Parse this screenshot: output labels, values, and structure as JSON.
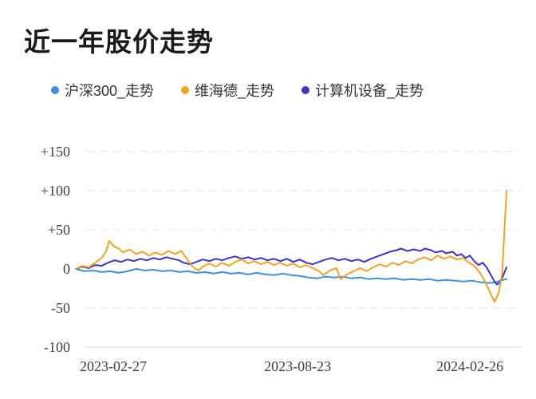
{
  "title": {
    "text": "近一年股价走势"
  },
  "legend": [
    {
      "label": "沪深300_走势",
      "color": "#3f8fdd"
    },
    {
      "label": "维海德_走势",
      "color": "#f3a224"
    },
    {
      "label": "计算机设备_走势",
      "color": "#3d31d0"
    }
  ],
  "colors": {
    "grid_dashed": "#e6e6e6",
    "axis_line": "#d8d8d8",
    "axis_text": "#3f3f3f",
    "title_text": "#1a1a1a",
    "legend_text": "#333333",
    "background": "#ffffff"
  },
  "chart_data": {
    "type": "line",
    "title": "近一年股价走势",
    "xlabel": "",
    "ylabel": "",
    "x_axis": {
      "type": "time",
      "start": "2023-02-27",
      "end": "2024-02-26",
      "tick_labels": [
        "2023-02-27",
        "2023-08-23",
        "2024-02-26"
      ]
    },
    "y_axis": {
      "ticks": [
        150,
        100,
        50,
        0,
        -50,
        -100
      ],
      "tick_labels": [
        "+150",
        "+100",
        "+50",
        "0",
        "-50",
        "-100"
      ],
      "ylim": [
        -100,
        150
      ],
      "unit": "percent_change"
    },
    "grid": {
      "dashed_at": [
        150,
        100,
        50,
        -50
      ],
      "solid_at": [
        -100
      ]
    },
    "legend_position": "top-center",
    "series": [
      {
        "name": "沪深300_走势",
        "color": "#3f8fdd",
        "points": [
          [
            0,
            0
          ],
          [
            0.02,
            -3
          ],
          [
            0.04,
            -2
          ],
          [
            0.06,
            -4
          ],
          [
            0.08,
            -3
          ],
          [
            0.1,
            -5
          ],
          [
            0.12,
            -3
          ],
          [
            0.14,
            0
          ],
          [
            0.16,
            -2
          ],
          [
            0.18,
            -1
          ],
          [
            0.2,
            -3
          ],
          [
            0.22,
            -2
          ],
          [
            0.24,
            -4
          ],
          [
            0.26,
            -3
          ],
          [
            0.28,
            -5
          ],
          [
            0.3,
            -4
          ],
          [
            0.32,
            -6
          ],
          [
            0.34,
            -4
          ],
          [
            0.36,
            -6
          ],
          [
            0.38,
            -5
          ],
          [
            0.4,
            -7
          ],
          [
            0.42,
            -5
          ],
          [
            0.44,
            -7
          ],
          [
            0.46,
            -8
          ],
          [
            0.48,
            -6
          ],
          [
            0.5,
            -8
          ],
          [
            0.52,
            -9
          ],
          [
            0.54,
            -11
          ],
          [
            0.56,
            -12
          ],
          [
            0.58,
            -10
          ],
          [
            0.6,
            -11
          ],
          [
            0.62,
            -10
          ],
          [
            0.64,
            -12
          ],
          [
            0.66,
            -11
          ],
          [
            0.68,
            -13
          ],
          [
            0.7,
            -12
          ],
          [
            0.72,
            -13
          ],
          [
            0.74,
            -12
          ],
          [
            0.76,
            -14
          ],
          [
            0.78,
            -13
          ],
          [
            0.8,
            -14
          ],
          [
            0.82,
            -13
          ],
          [
            0.84,
            -15
          ],
          [
            0.86,
            -14
          ],
          [
            0.88,
            -15
          ],
          [
            0.9,
            -16
          ],
          [
            0.92,
            -15
          ],
          [
            0.94,
            -17
          ],
          [
            0.96,
            -18
          ],
          [
            0.975,
            -17
          ],
          [
            0.985,
            -15
          ],
          [
            1,
            -13
          ]
        ]
      },
      {
        "name": "维海德_走势",
        "color": "#f3a224",
        "points": [
          [
            0,
            0
          ],
          [
            0.015,
            4
          ],
          [
            0.03,
            2
          ],
          [
            0.045,
            8
          ],
          [
            0.06,
            14
          ],
          [
            0.07,
            22
          ],
          [
            0.078,
            36
          ],
          [
            0.088,
            29
          ],
          [
            0.1,
            26
          ],
          [
            0.11,
            21
          ],
          [
            0.125,
            25
          ],
          [
            0.14,
            19
          ],
          [
            0.155,
            22
          ],
          [
            0.17,
            17
          ],
          [
            0.185,
            21
          ],
          [
            0.2,
            18
          ],
          [
            0.215,
            23
          ],
          [
            0.23,
            19
          ],
          [
            0.245,
            23
          ],
          [
            0.255,
            15
          ],
          [
            0.265,
            7
          ],
          [
            0.275,
            1
          ],
          [
            0.285,
            -2
          ],
          [
            0.295,
            3
          ],
          [
            0.31,
            7
          ],
          [
            0.325,
            3
          ],
          [
            0.34,
            8
          ],
          [
            0.355,
            4
          ],
          [
            0.37,
            9
          ],
          [
            0.385,
            12
          ],
          [
            0.4,
            7
          ],
          [
            0.415,
            10
          ],
          [
            0.43,
            6
          ],
          [
            0.445,
            9
          ],
          [
            0.46,
            5
          ],
          [
            0.475,
            8
          ],
          [
            0.49,
            4
          ],
          [
            0.505,
            7
          ],
          [
            0.52,
            2
          ],
          [
            0.535,
            5
          ],
          [
            0.55,
            1
          ],
          [
            0.565,
            -3
          ],
          [
            0.575,
            -8
          ],
          [
            0.59,
            -2
          ],
          [
            0.605,
            1
          ],
          [
            0.615,
            -13
          ],
          [
            0.63,
            -7
          ],
          [
            0.645,
            -3
          ],
          [
            0.66,
            1
          ],
          [
            0.675,
            -3
          ],
          [
            0.69,
            2
          ],
          [
            0.705,
            6
          ],
          [
            0.72,
            3
          ],
          [
            0.735,
            8
          ],
          [
            0.75,
            5
          ],
          [
            0.765,
            10
          ],
          [
            0.78,
            7
          ],
          [
            0.795,
            12
          ],
          [
            0.81,
            15
          ],
          [
            0.825,
            11
          ],
          [
            0.84,
            17
          ],
          [
            0.855,
            13
          ],
          [
            0.87,
            16
          ],
          [
            0.885,
            12
          ],
          [
            0.9,
            14
          ],
          [
            0.91,
            9
          ],
          [
            0.925,
            4
          ],
          [
            0.94,
            -6
          ],
          [
            0.95,
            -16
          ],
          [
            0.96,
            -28
          ],
          [
            0.972,
            -42
          ],
          [
            0.982,
            -30
          ],
          [
            0.99,
            -5
          ],
          [
            1,
            100
          ]
        ]
      },
      {
        "name": "计算机设备_走势",
        "color": "#3d31d0",
        "points": [
          [
            0,
            0
          ],
          [
            0.015,
            3
          ],
          [
            0.03,
            1
          ],
          [
            0.045,
            5
          ],
          [
            0.06,
            4
          ],
          [
            0.075,
            8
          ],
          [
            0.09,
            11
          ],
          [
            0.105,
            9
          ],
          [
            0.12,
            12
          ],
          [
            0.135,
            10
          ],
          [
            0.15,
            13
          ],
          [
            0.165,
            11
          ],
          [
            0.18,
            14
          ],
          [
            0.195,
            12
          ],
          [
            0.21,
            15
          ],
          [
            0.225,
            13
          ],
          [
            0.24,
            11
          ],
          [
            0.25,
            8
          ],
          [
            0.265,
            6
          ],
          [
            0.28,
            9
          ],
          [
            0.295,
            12
          ],
          [
            0.31,
            10
          ],
          [
            0.325,
            13
          ],
          [
            0.34,
            11
          ],
          [
            0.355,
            14
          ],
          [
            0.37,
            16
          ],
          [
            0.385,
            13
          ],
          [
            0.4,
            15
          ],
          [
            0.415,
            12
          ],
          [
            0.43,
            14
          ],
          [
            0.445,
            11
          ],
          [
            0.46,
            13
          ],
          [
            0.475,
            10
          ],
          [
            0.49,
            13
          ],
          [
            0.505,
            9
          ],
          [
            0.52,
            12
          ],
          [
            0.535,
            8
          ],
          [
            0.55,
            6
          ],
          [
            0.565,
            9
          ],
          [
            0.58,
            12
          ],
          [
            0.595,
            14
          ],
          [
            0.61,
            11
          ],
          [
            0.625,
            13
          ],
          [
            0.64,
            10
          ],
          [
            0.655,
            12
          ],
          [
            0.67,
            9
          ],
          [
            0.685,
            13
          ],
          [
            0.7,
            16
          ],
          [
            0.715,
            19
          ],
          [
            0.73,
            22
          ],
          [
            0.745,
            24
          ],
          [
            0.755,
            26
          ],
          [
            0.77,
            23
          ],
          [
            0.785,
            25
          ],
          [
            0.8,
            23
          ],
          [
            0.81,
            26
          ],
          [
            0.825,
            24
          ],
          [
            0.835,
            21
          ],
          [
            0.85,
            23
          ],
          [
            0.86,
            20
          ],
          [
            0.875,
            22
          ],
          [
            0.885,
            17
          ],
          [
            0.895,
            19
          ],
          [
            0.905,
            14
          ],
          [
            0.915,
            17
          ],
          [
            0.925,
            10
          ],
          [
            0.935,
            5
          ],
          [
            0.945,
            8
          ],
          [
            0.955,
            1
          ],
          [
            0.965,
            -9
          ],
          [
            0.972,
            -16
          ],
          [
            0.978,
            -20
          ],
          [
            0.985,
            -17
          ],
          [
            0.992,
            -9
          ],
          [
            1,
            2
          ]
        ]
      }
    ]
  }
}
